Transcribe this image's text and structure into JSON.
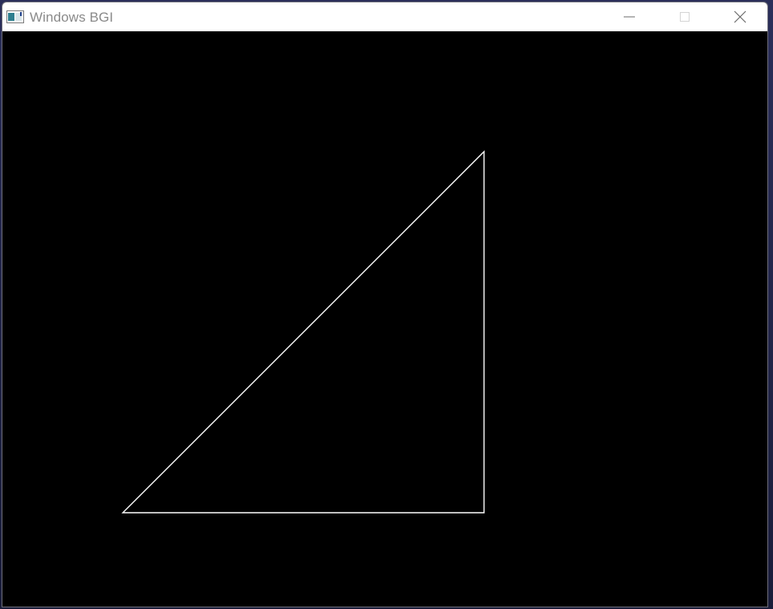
{
  "window": {
    "title": "Windows BGI",
    "caption_buttons": [
      "minimize",
      "maximize",
      "close"
    ]
  },
  "canvas": {
    "background": "#000000",
    "shape": "right-triangle",
    "stroke_color": "#ffffff"
  },
  "icons": {
    "app": "app-window-icon",
    "minimize": "minimize-icon",
    "maximize": "maximize-icon",
    "close": "close-icon"
  }
}
